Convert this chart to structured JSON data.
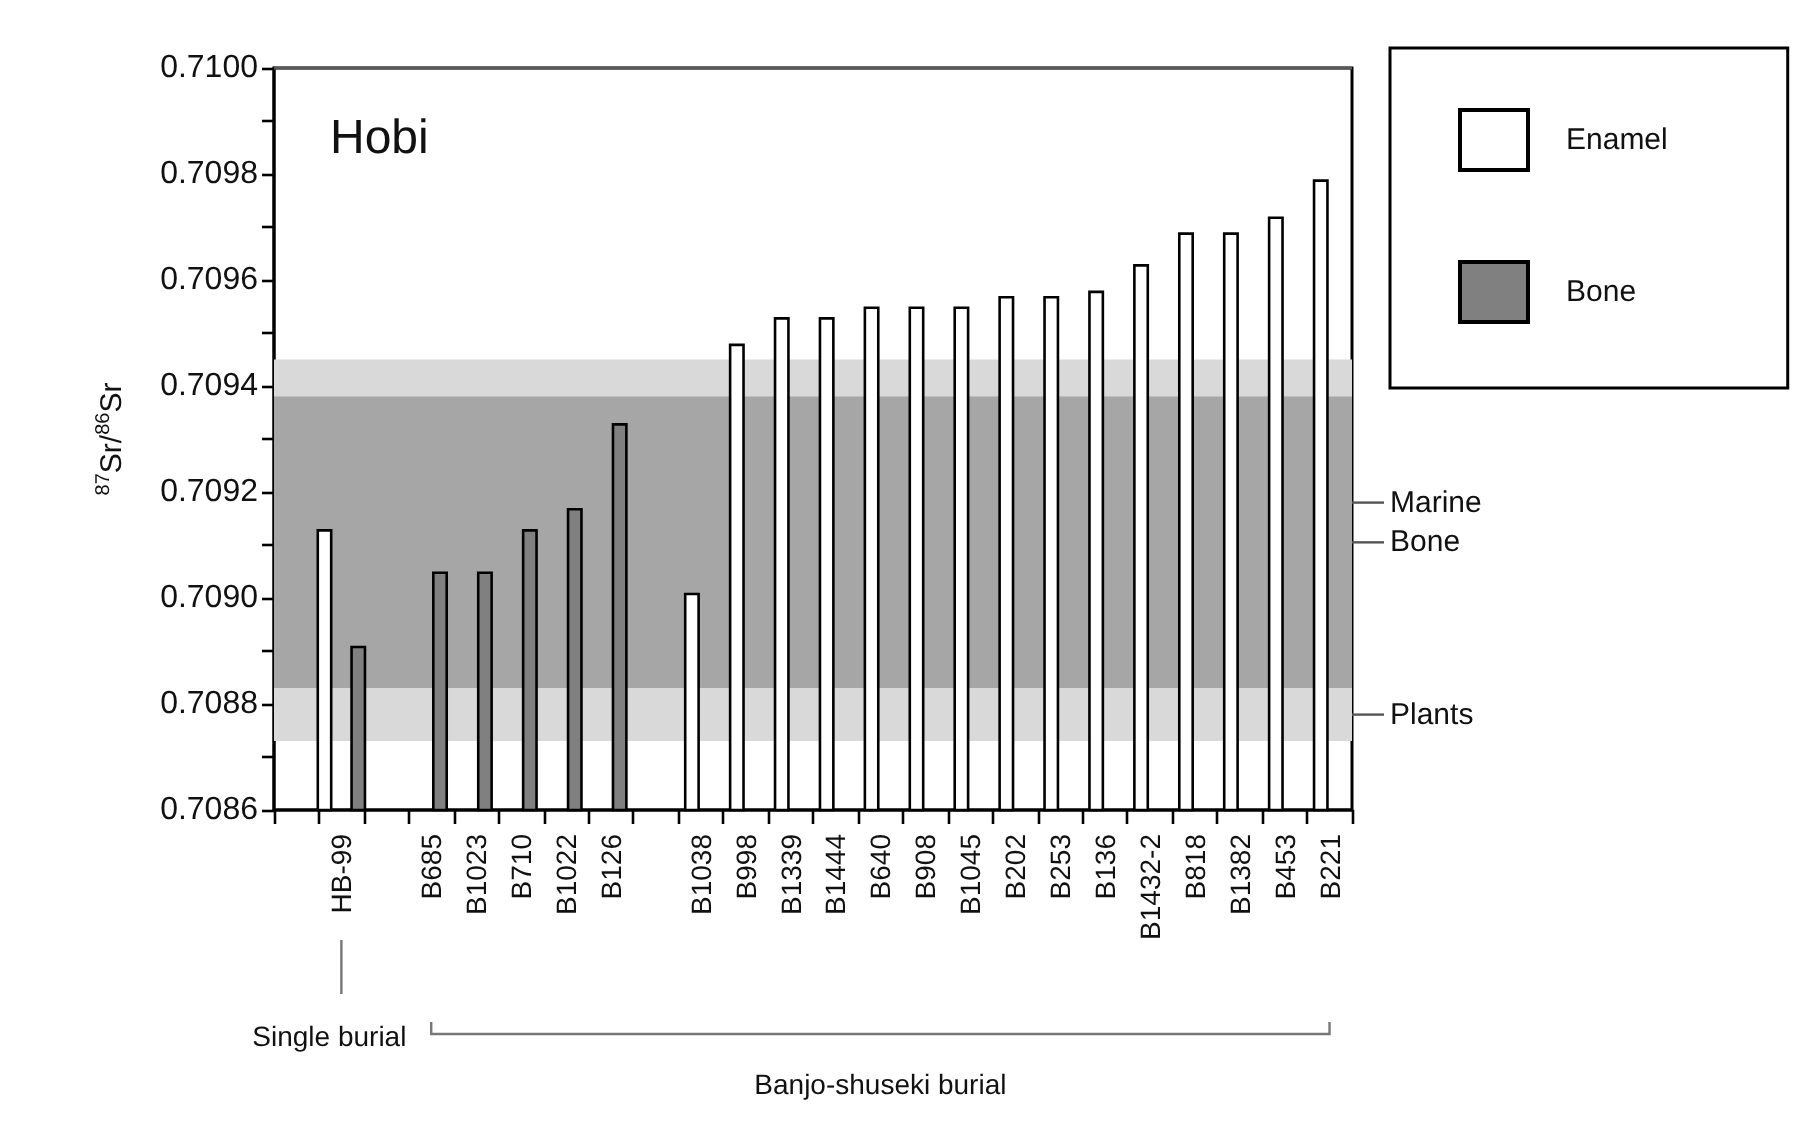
{
  "chart_data": {
    "type": "bar",
    "title": "Hobi",
    "ylabel": "$^{87}$Sr/$^{86}$Sr",
    "categories": [
      null,
      "HB-99",
      null,
      "B685",
      "B1023",
      "B710",
      "B1022",
      "B126",
      null,
      "B1038",
      "B998",
      "B1339",
      "B1444",
      "B640",
      "B908",
      "B1045",
      "B202",
      "B253",
      "B136",
      "B1432-2",
      "B818",
      "B1382",
      "B453",
      "B221"
    ],
    "series": [
      {
        "name": "Enamel",
        "color": "#ffffff",
        "values": [
          null,
          0.70913,
          null,
          null,
          null,
          null,
          null,
          null,
          null,
          0.70901,
          0.70948,
          0.70953,
          0.70953,
          0.70955,
          0.70955,
          0.70955,
          0.70957,
          0.70957,
          0.70958,
          0.70963,
          0.70969,
          0.70969,
          0.70972,
          0.70979
        ]
      },
      {
        "name": "Bone",
        "color": "#808080",
        "values": [
          null,
          0.70891,
          null,
          0.70905,
          0.70905,
          0.70913,
          0.70917,
          0.70933,
          null,
          null,
          null,
          null,
          null,
          null,
          null,
          null,
          null,
          null,
          null,
          null,
          null,
          null,
          null,
          null
        ]
      }
    ],
    "ylim": [
      0.7086,
      0.71
    ],
    "yticks": [
      0.7086,
      {
        "value": 0.7087,
        "label": null
      },
      0.7088,
      {
        "value": 0.7089,
        "label": null
      },
      {
        "value": 0.709,
        "label": "0.7090"
      },
      {
        "value": 0.7091,
        "label": null
      },
      0.7092,
      {
        "value": 0.7093,
        "label": null
      },
      0.7094,
      {
        "value": 0.7095,
        "label": null
      },
      0.7096,
      {
        "value": 0.7097,
        "label": null
      },
      0.7098,
      {
        "value": 0.7099,
        "label": null
      },
      {
        "value": 0.71,
        "label": "0.7100"
      }
    ],
    "ref_lines": [
      {
        "axis": "y",
        "value": 0.70918,
        "label": "Marine",
        "color": "#595959"
      }
    ],
    "bands": [
      {
        "axis": "y",
        "from": 0.70873,
        "to": 0.70945,
        "label": "Plants",
        "color": "#d9d9d9"
      },
      {
        "axis": "y",
        "from": 0.70883,
        "to": 0.70938,
        "label": "Bone",
        "color": "#a6a6a6"
      }
    ],
    "annotations": [
      "Single burial",
      "Banjo-shuseki burial"
    ],
    "legend": "top right",
    "grid": false
  }
}
